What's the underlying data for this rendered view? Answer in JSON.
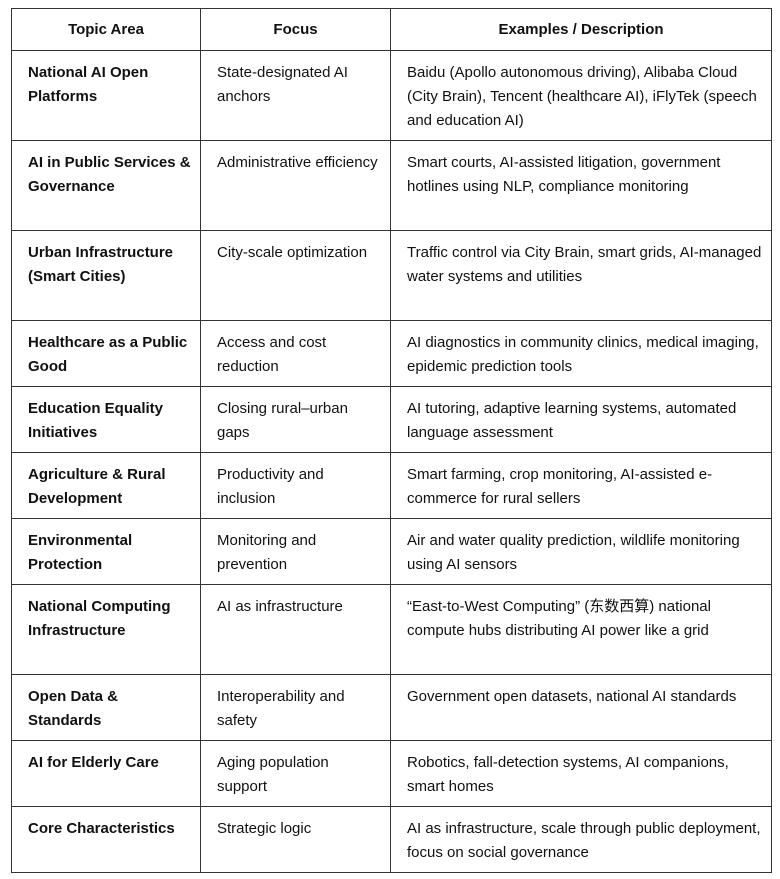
{
  "table": {
    "headers": [
      "Topic Area",
      "Focus",
      "Examples / Description"
    ],
    "rows": [
      {
        "topic": "National AI Open Platforms",
        "focus": "State-designated AI anchors",
        "examples": "Baidu (Apollo autonomous driving), Alibaba Cloud (City Brain), Tencent (healthcare AI), iFlyTek (speech and education AI)"
      },
      {
        "topic": "AI in Public Services & Governance",
        "focus": "Administrative efficiency",
        "examples": "Smart courts, AI-assisted litigation, government hotlines using NLP, compliance monitoring"
      },
      {
        "topic": "Urban Infrastructure (Smart Cities)",
        "focus": "City-scale optimization",
        "examples": "Traffic control via City Brain, smart grids, AI-managed water systems and utilities"
      },
      {
        "topic": "Healthcare as a Public Good",
        "focus": "Access and cost reduction",
        "examples": "AI diagnostics in community clinics, medical imaging, epidemic prediction tools"
      },
      {
        "topic": "Education Equality Initiatives",
        "focus": "Closing rural–urban gaps",
        "examples": "AI tutoring, adaptive learning systems, automated language assessment"
      },
      {
        "topic": "Agriculture & Rural Development",
        "focus": "Productivity and inclusion",
        "examples": "Smart farming, crop monitoring, AI-assisted e-commerce for rural sellers"
      },
      {
        "topic": "Environmental Protection",
        "focus": "Monitoring and prevention",
        "examples": "Air and water quality prediction, wildlife monitoring using AI sensors"
      },
      {
        "topic": "National Computing Infrastructure",
        "focus": "AI as infrastructure",
        "examples": "“East-to-West Computing” (东数西算) national compute hubs distributing AI power like a grid"
      },
      {
        "topic": "Open Data & Standards",
        "focus": "Interoperability and safety",
        "examples": "Government open datasets, national AI standards"
      },
      {
        "topic": "AI for Elderly Care",
        "focus": "Aging population support",
        "examples": "Robotics, fall-detection systems, AI companions, smart homes"
      },
      {
        "topic": "Core Characteristics",
        "focus": "Strategic logic",
        "examples": "AI as infrastructure, scale through public deployment, focus on social governance"
      }
    ]
  }
}
